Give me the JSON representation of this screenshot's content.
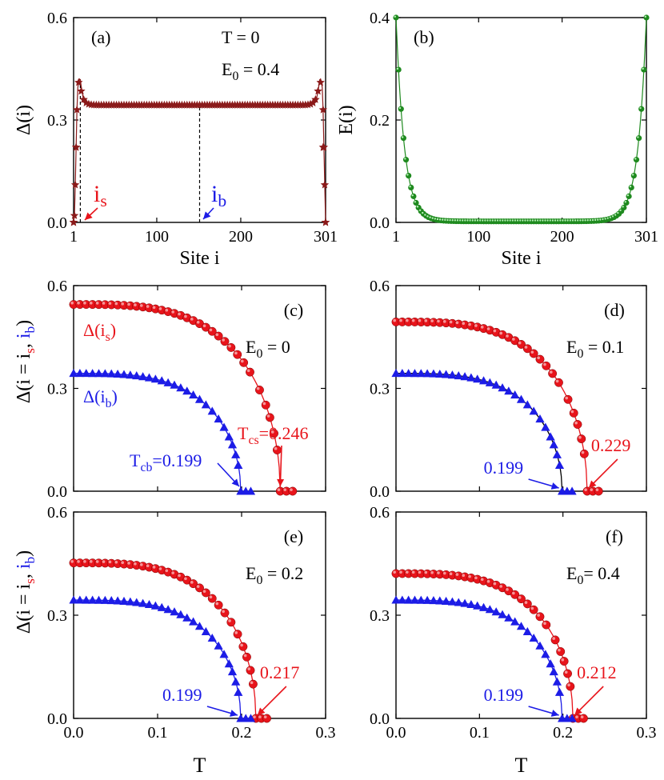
{
  "figure": {
    "x_label_bottom": "T",
    "site_label": "Site i"
  },
  "chart_data": [
    {
      "id": "a",
      "type": "line",
      "panel_label": "(a)",
      "annotations": [
        "T = 0",
        "E",
        "0",
        " = 0.4"
      ],
      "ylabel": "Δ(i)",
      "xlabel": "Site i",
      "xlim": [
        1,
        301
      ],
      "ylim": [
        0,
        0.6
      ],
      "x_ticks": [
        1,
        100,
        200,
        301
      ],
      "y_ticks": [
        "0.0",
        "0.3",
        "0.6"
      ],
      "marker": "star",
      "color": "#8b1a1a",
      "plateau": 0.344,
      "edge_peak": 0.42,
      "i_s": 9,
      "i_b": 151,
      "label_is": "i",
      "label_is_sub": "s",
      "label_ib": "i",
      "label_ib_sub": "b",
      "is_color": "#e8141b",
      "ib_color": "#1c1ce6",
      "x": [
        1,
        2,
        3,
        4,
        5,
        6,
        7,
        8,
        9,
        10,
        11,
        12,
        13,
        14,
        15,
        16,
        18,
        20,
        25,
        30,
        40,
        50,
        100,
        150,
        200,
        250,
        260,
        270,
        280,
        285,
        287,
        288,
        289,
        290,
        291,
        292,
        293,
        294,
        295,
        296,
        297,
        298,
        299,
        300,
        301
      ],
      "y": [
        0.0,
        0.02,
        0.11,
        0.22,
        0.33,
        0.395,
        0.41,
        0.42,
        0.418,
        0.4,
        0.385,
        0.37,
        0.36,
        0.355,
        0.351,
        0.348,
        0.346,
        0.345,
        0.344,
        0.344,
        0.344,
        0.344,
        0.344,
        0.344,
        0.344,
        0.344,
        0.344,
        0.344,
        0.345,
        0.347,
        0.349,
        0.352,
        0.356,
        0.362,
        0.372,
        0.385,
        0.4,
        0.418,
        0.42,
        0.41,
        0.395,
        0.33,
        0.22,
        0.11,
        0.0
      ]
    },
    {
      "id": "b",
      "type": "line",
      "panel_label": "(b)",
      "ylabel": "E(i)",
      "xlabel": "Site i",
      "xlim": [
        1,
        301
      ],
      "ylim": [
        0,
        0.4
      ],
      "x_ticks": [
        1,
        100,
        200,
        301
      ],
      "y_ticks": [
        "0.0",
        "0.2",
        "0.4"
      ],
      "marker": "circle",
      "color": "#1f8a1f",
      "E0": 0.4,
      "decay_length": 10
    },
    {
      "id": "c",
      "type": "line",
      "panel_label": "(c)",
      "annotations": [
        "E",
        "0",
        " = 0"
      ],
      "ylabel": "Δ(i = i",
      "xlabel": "T",
      "xlim": [
        0,
        0.3
      ],
      "ylim": [
        0,
        0.6
      ],
      "x_ticks": [
        "0.0",
        "0.1",
        "0.2",
        "0.3"
      ],
      "y_ticks": [
        "0.0",
        "0.3",
        "0.6"
      ],
      "series": [
        {
          "name": "Δ(i",
          "name_sub": "s",
          "name_close": ")",
          "color": "#e8141b",
          "marker": "circle",
          "delta0": 0.545,
          "Tc": 0.246
        },
        {
          "name": "Δ(i",
          "name_sub": "b",
          "name_close": ")",
          "color": "#1c1ce6",
          "marker": "triangle",
          "delta0": 0.344,
          "Tc": 0.199
        }
      ],
      "tc_labels": [
        {
          "prefix": "T",
          "sub": "cs",
          "text": "=0.246",
          "color": "#e8141b"
        },
        {
          "prefix": "T",
          "sub": "cb",
          "text": "=0.199",
          "color": "#1c1ce6"
        }
      ]
    },
    {
      "id": "d",
      "type": "line",
      "panel_label": "(d)",
      "annotations": [
        "E",
        "0",
        " = 0.1"
      ],
      "xlabel": "T",
      "xlim": [
        0,
        0.3
      ],
      "ylim": [
        0,
        0.6
      ],
      "x_ticks": [
        "0.0",
        "0.1",
        "0.2",
        "0.3"
      ],
      "y_ticks": [
        "0.0",
        "0.3",
        "0.6"
      ],
      "series": [
        {
          "name": "Δ(i_s)",
          "color": "#e8141b",
          "marker": "circle",
          "delta0": 0.494,
          "Tc": 0.229
        },
        {
          "name": "Δ(i_b)",
          "color": "#1c1ce6",
          "marker": "triangle",
          "delta0": 0.344,
          "Tc": 0.199
        }
      ],
      "tc_labels": [
        {
          "text": "0.229",
          "color": "#e8141b"
        },
        {
          "text": "0.199",
          "color": "#1c1ce6"
        }
      ]
    },
    {
      "id": "e",
      "type": "line",
      "panel_label": "(e)",
      "annotations": [
        "E",
        "0",
        " = 0.2"
      ],
      "ylabel": "Δ(i = i",
      "xlabel": "T",
      "xlim": [
        0,
        0.3
      ],
      "ylim": [
        0,
        0.6
      ],
      "x_ticks": [
        "0.0",
        "0.1",
        "0.2",
        "0.3"
      ],
      "y_ticks": [
        "0.0",
        "0.3",
        "0.6"
      ],
      "series": [
        {
          "name": "Δ(i_s)",
          "color": "#e8141b",
          "marker": "circle",
          "delta0": 0.452,
          "Tc": 0.217
        },
        {
          "name": "Δ(i_b)",
          "color": "#1c1ce6",
          "marker": "triangle",
          "delta0": 0.344,
          "Tc": 0.199
        }
      ],
      "tc_labels": [
        {
          "text": "0.217",
          "color": "#e8141b"
        },
        {
          "text": "0.199",
          "color": "#1c1ce6"
        }
      ]
    },
    {
      "id": "f",
      "type": "line",
      "panel_label": "(f)",
      "annotations": [
        "E",
        "0",
        "= 0.4"
      ],
      "xlabel": "T",
      "xlim": [
        0,
        0.3
      ],
      "ylim": [
        0,
        0.6
      ],
      "x_ticks": [
        "0.0",
        "0.1",
        "0.2",
        "0.3"
      ],
      "y_ticks": [
        "0.0",
        "0.3",
        "0.6"
      ],
      "series": [
        {
          "name": "Δ(i_s)",
          "color": "#e8141b",
          "marker": "circle",
          "delta0": 0.421,
          "Tc": 0.212
        },
        {
          "name": "Δ(i_b)",
          "color": "#1c1ce6",
          "marker": "triangle",
          "delta0": 0.344,
          "Tc": 0.199
        }
      ],
      "tc_labels": [
        {
          "text": "0.212",
          "color": "#e8141b"
        },
        {
          "text": "0.199",
          "color": "#1c1ce6"
        }
      ]
    }
  ]
}
